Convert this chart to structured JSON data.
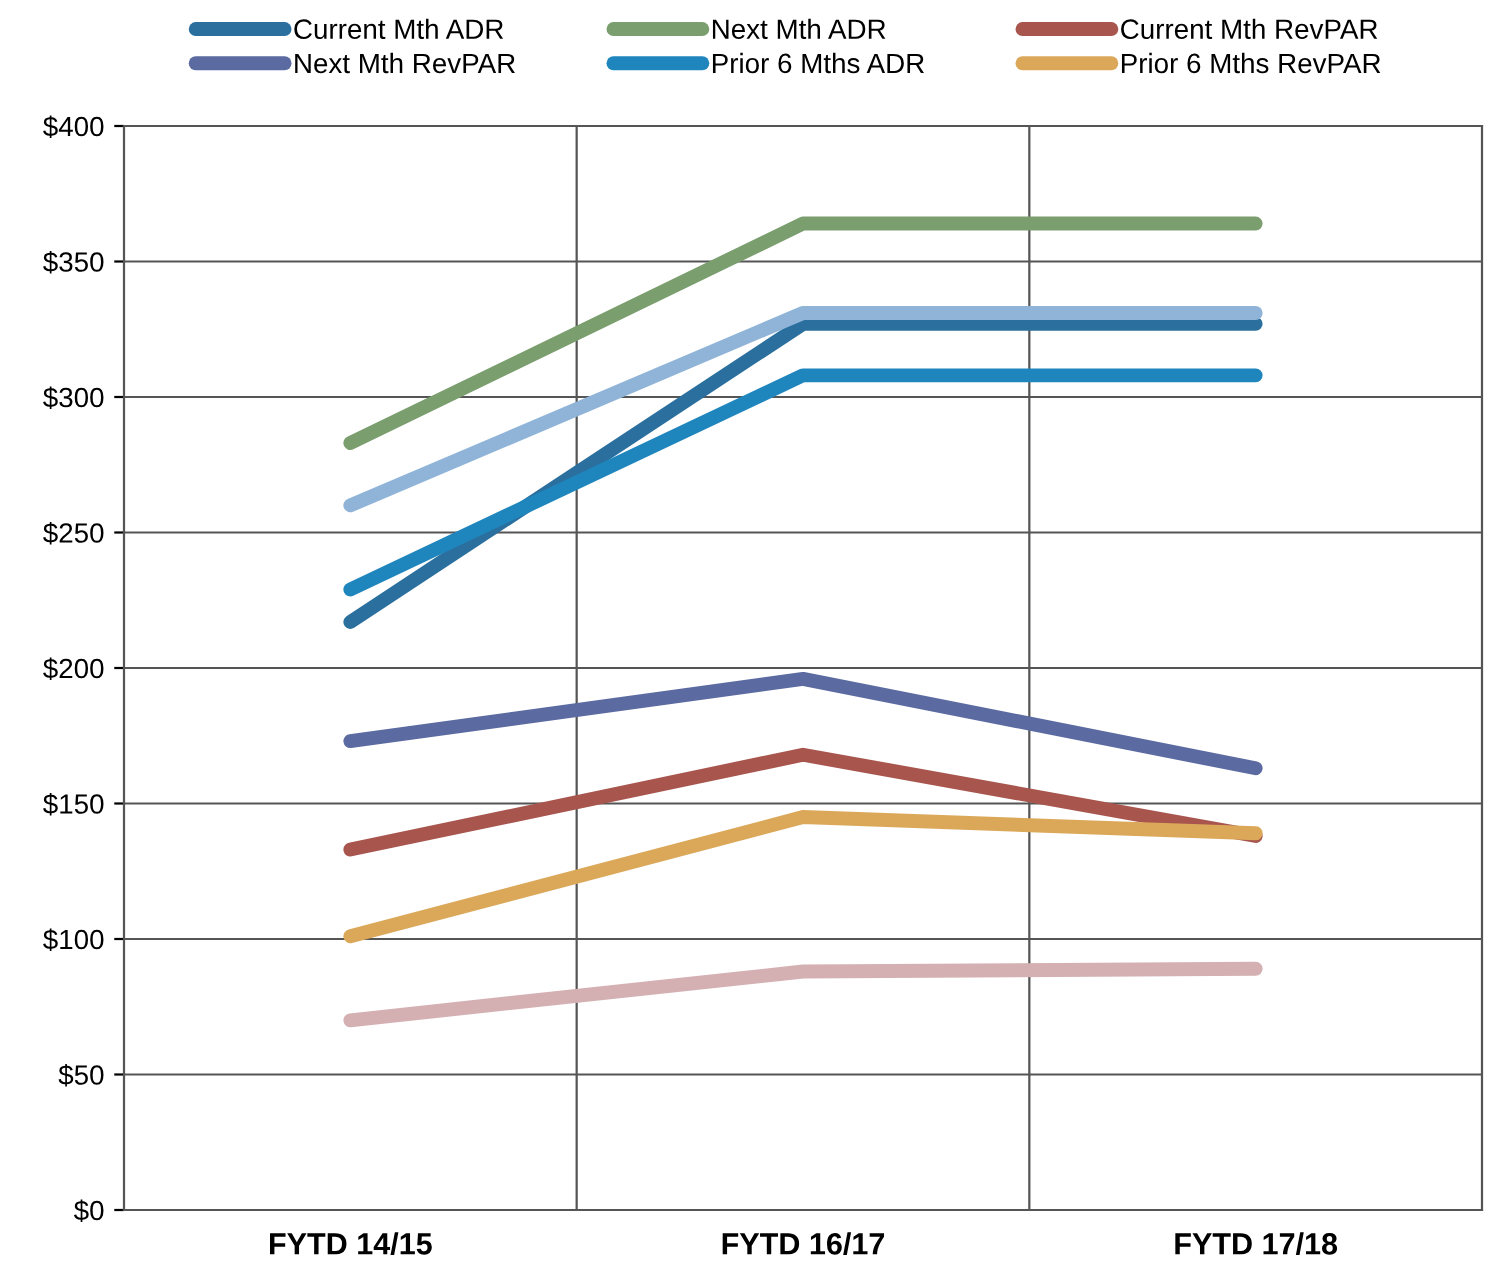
{
  "chart_data": {
    "type": "line",
    "categories": [
      "FYTD 14/15",
      "FYTD 16/17",
      "FYTD 17/18"
    ],
    "series": [
      {
        "name": "Current Mth ADR",
        "color": "#2a6f9e",
        "values": [
          217,
          327,
          327
        ]
      },
      {
        "name": "Next Mth ADR",
        "color": "#7a9e6e",
        "values": [
          283,
          364,
          364
        ]
      },
      {
        "name": "Current Mth RevPAR",
        "color": "#a8554e",
        "values": [
          133,
          168,
          138
        ]
      },
      {
        "name": "Next Mth RevPAR",
        "color": "#5b6aa0",
        "values": [
          173,
          196,
          163
        ]
      },
      {
        "name": "Prior 6 Mths ADR",
        "color": "#1f86bd",
        "values": [
          229,
          308,
          308
        ]
      },
      {
        "name": "Prior 6 Mths RevPAR",
        "color": "#dba85a",
        "values": [
          101,
          145,
          139
        ]
      },
      {
        "color": "#8fb4d8",
        "values": [
          260,
          331,
          331
        ]
      },
      {
        "color": "#d4b0b3",
        "values": [
          70,
          88,
          89
        ]
      }
    ],
    "ylim": [
      0,
      400
    ],
    "yticks": [
      {
        "value": 0,
        "label": "$0"
      },
      {
        "value": 50,
        "label": "$50"
      },
      {
        "value": 100,
        "label": "$100"
      },
      {
        "value": 150,
        "label": "$150"
      },
      {
        "value": 200,
        "label": "$200"
      },
      {
        "value": 250,
        "label": "$250"
      },
      {
        "value": 300,
        "label": "$300"
      },
      {
        "value": 350,
        "label": "$350"
      },
      {
        "value": 400,
        "label": "$400"
      }
    ],
    "grid": true,
    "legend": "top",
    "marker": "none",
    "line_style": "solid"
  }
}
